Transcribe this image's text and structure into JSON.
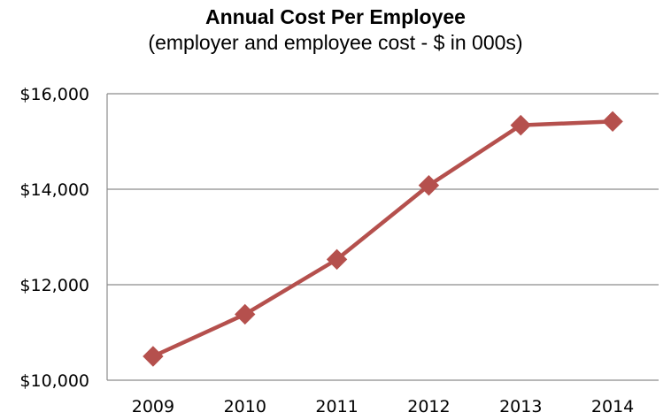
{
  "chart_data": {
    "type": "line",
    "title": "Annual Cost Per Employee",
    "subtitle": "(employer and employee cost - $ in 000s)",
    "xlabel": "",
    "ylabel": "",
    "categories": [
      "2009",
      "2010",
      "2011",
      "2012",
      "2013",
      "2014"
    ],
    "series": [
      {
        "values": [
          10500,
          11380,
          12530,
          14080,
          15340,
          15420
        ],
        "color": "#b5504d",
        "marker": "diamond"
      }
    ],
    "ylim": [
      10000,
      16000
    ],
    "yticks": [
      10000,
      12000,
      14000,
      16000
    ],
    "ytick_labels": [
      "$10,000",
      "$12,000",
      "$14,000",
      "$16,000"
    ],
    "grid": true,
    "legend": "none"
  }
}
